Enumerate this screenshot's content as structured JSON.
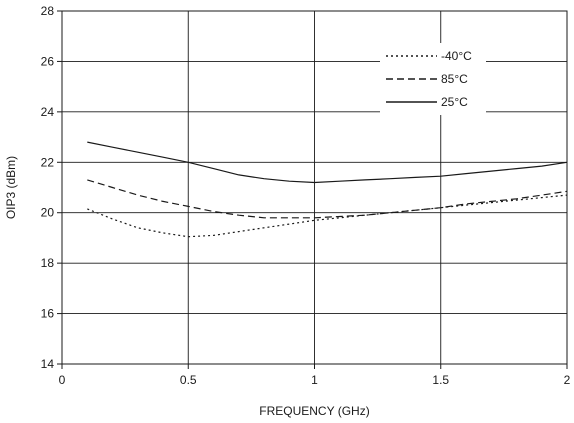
{
  "chart_data": {
    "type": "line",
    "title": "",
    "xlabel": "FREQUENCY (GHz)",
    "ylabel": "OIP3 (dBm)",
    "xlim": [
      0,
      2
    ],
    "ylim": [
      14,
      28
    ],
    "xticks": [
      0,
      0.5,
      1,
      1.5,
      2
    ],
    "xtick_labels": [
      "0",
      "0.5",
      "1",
      "1.5",
      "2"
    ],
    "yticks": [
      14,
      16,
      18,
      20,
      22,
      24,
      26,
      28
    ],
    "ytick_labels": [
      "14",
      "16",
      "18",
      "20",
      "22",
      "24",
      "26",
      "28"
    ],
    "grid": true,
    "legend_position": "top-right",
    "series": [
      {
        "name": "-40°C",
        "style": "dotted",
        "color": "#1a1a1a",
        "x": [
          0.1,
          0.2,
          0.3,
          0.4,
          0.5,
          0.6,
          0.7,
          0.8,
          0.9,
          1.0,
          1.1,
          1.2,
          1.3,
          1.4,
          1.5,
          1.6,
          1.7,
          1.8,
          1.9,
          2.0
        ],
        "y": [
          20.15,
          19.75,
          19.4,
          19.2,
          19.05,
          19.1,
          19.25,
          19.4,
          19.55,
          19.7,
          19.8,
          19.9,
          20.0,
          20.1,
          20.2,
          20.3,
          20.4,
          20.5,
          20.6,
          20.7
        ]
      },
      {
        "name": "85°C",
        "style": "dashed",
        "color": "#1a1a1a",
        "x": [
          0.1,
          0.2,
          0.3,
          0.4,
          0.5,
          0.6,
          0.7,
          0.8,
          0.9,
          1.0,
          1.1,
          1.2,
          1.3,
          1.4,
          1.5,
          1.6,
          1.7,
          1.8,
          1.9,
          2.0
        ],
        "y": [
          21.3,
          21.0,
          20.7,
          20.45,
          20.25,
          20.05,
          19.9,
          19.8,
          19.8,
          19.8,
          19.85,
          19.9,
          20.0,
          20.1,
          20.2,
          20.35,
          20.45,
          20.55,
          20.7,
          20.85
        ]
      },
      {
        "name": "25°C",
        "style": "solid",
        "color": "#1a1a1a",
        "x": [
          0.1,
          0.2,
          0.3,
          0.4,
          0.5,
          0.6,
          0.7,
          0.8,
          0.9,
          1.0,
          1.1,
          1.2,
          1.3,
          1.4,
          1.5,
          1.6,
          1.7,
          1.8,
          1.9,
          2.0
        ],
        "y": [
          22.8,
          22.6,
          22.4,
          22.2,
          22.0,
          21.75,
          21.5,
          21.35,
          21.25,
          21.2,
          21.25,
          21.3,
          21.35,
          21.4,
          21.45,
          21.55,
          21.65,
          21.75,
          21.85,
          22.0
        ]
      }
    ]
  }
}
